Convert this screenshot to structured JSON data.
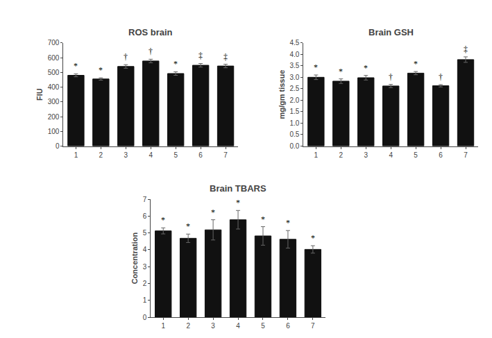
{
  "chart_data": [
    {
      "type": "bar",
      "title": "ROS brain",
      "ylabel": "FIU",
      "categories": [
        1,
        2,
        3,
        4,
        5,
        6,
        7
      ],
      "values": [
        480,
        455,
        540,
        577,
        492,
        548,
        543
      ],
      "errors": [
        10,
        8,
        12,
        12,
        12,
        12,
        12
      ],
      "annotations": [
        "*",
        "*",
        "†",
        "†",
        "*",
        "‡",
        "‡"
      ],
      "color": "#111111",
      "ylim": [
        0,
        700
      ],
      "yticks": [
        0,
        100,
        200,
        300,
        400,
        500,
        600,
        700
      ],
      "grid": false
    },
    {
      "type": "bar",
      "title": "Brain GSH",
      "ylabel": "mg/gm tissue",
      "categories": [
        1,
        2,
        3,
        4,
        5,
        6,
        7
      ],
      "values": [
        3.0,
        2.83,
        2.98,
        2.62,
        3.18,
        2.63,
        3.77
      ],
      "errors": [
        0.1,
        0.1,
        0.1,
        0.07,
        0.07,
        0.05,
        0.12
      ],
      "annotations": [
        "*",
        "*",
        "*",
        "†",
        "*",
        "†",
        "‡"
      ],
      "color": "#111111",
      "ylim": [
        0.0,
        4.5
      ],
      "yticks": [
        {
          "value": 0,
          "label": "0.0"
        },
        0.5,
        {
          "value": 1,
          "label": "1.0"
        },
        1.5,
        {
          "value": 2,
          "label": "2.0"
        },
        2.5,
        {
          "value": 3,
          "label": "3.0"
        },
        3.5,
        {
          "value": 4,
          "label": "4.0"
        },
        4.5
      ],
      "grid": false
    },
    {
      "type": "bar",
      "title": "Brain TBARS",
      "ylabel": "Concentration",
      "categories": [
        1,
        2,
        3,
        4,
        5,
        6,
        7
      ],
      "values": [
        5.12,
        4.68,
        5.18,
        5.78,
        4.82,
        4.62,
        4.02
      ],
      "errors": [
        0.18,
        0.25,
        0.6,
        0.55,
        0.55,
        0.52,
        0.22
      ],
      "annotations": [
        "*",
        "*",
        "*",
        "*",
        "*",
        "*",
        "*"
      ],
      "color": "#111111",
      "ylim": [
        0,
        7
      ],
      "yticks": [
        0,
        1,
        2,
        3,
        4,
        5,
        6,
        7
      ],
      "grid": false
    }
  ]
}
